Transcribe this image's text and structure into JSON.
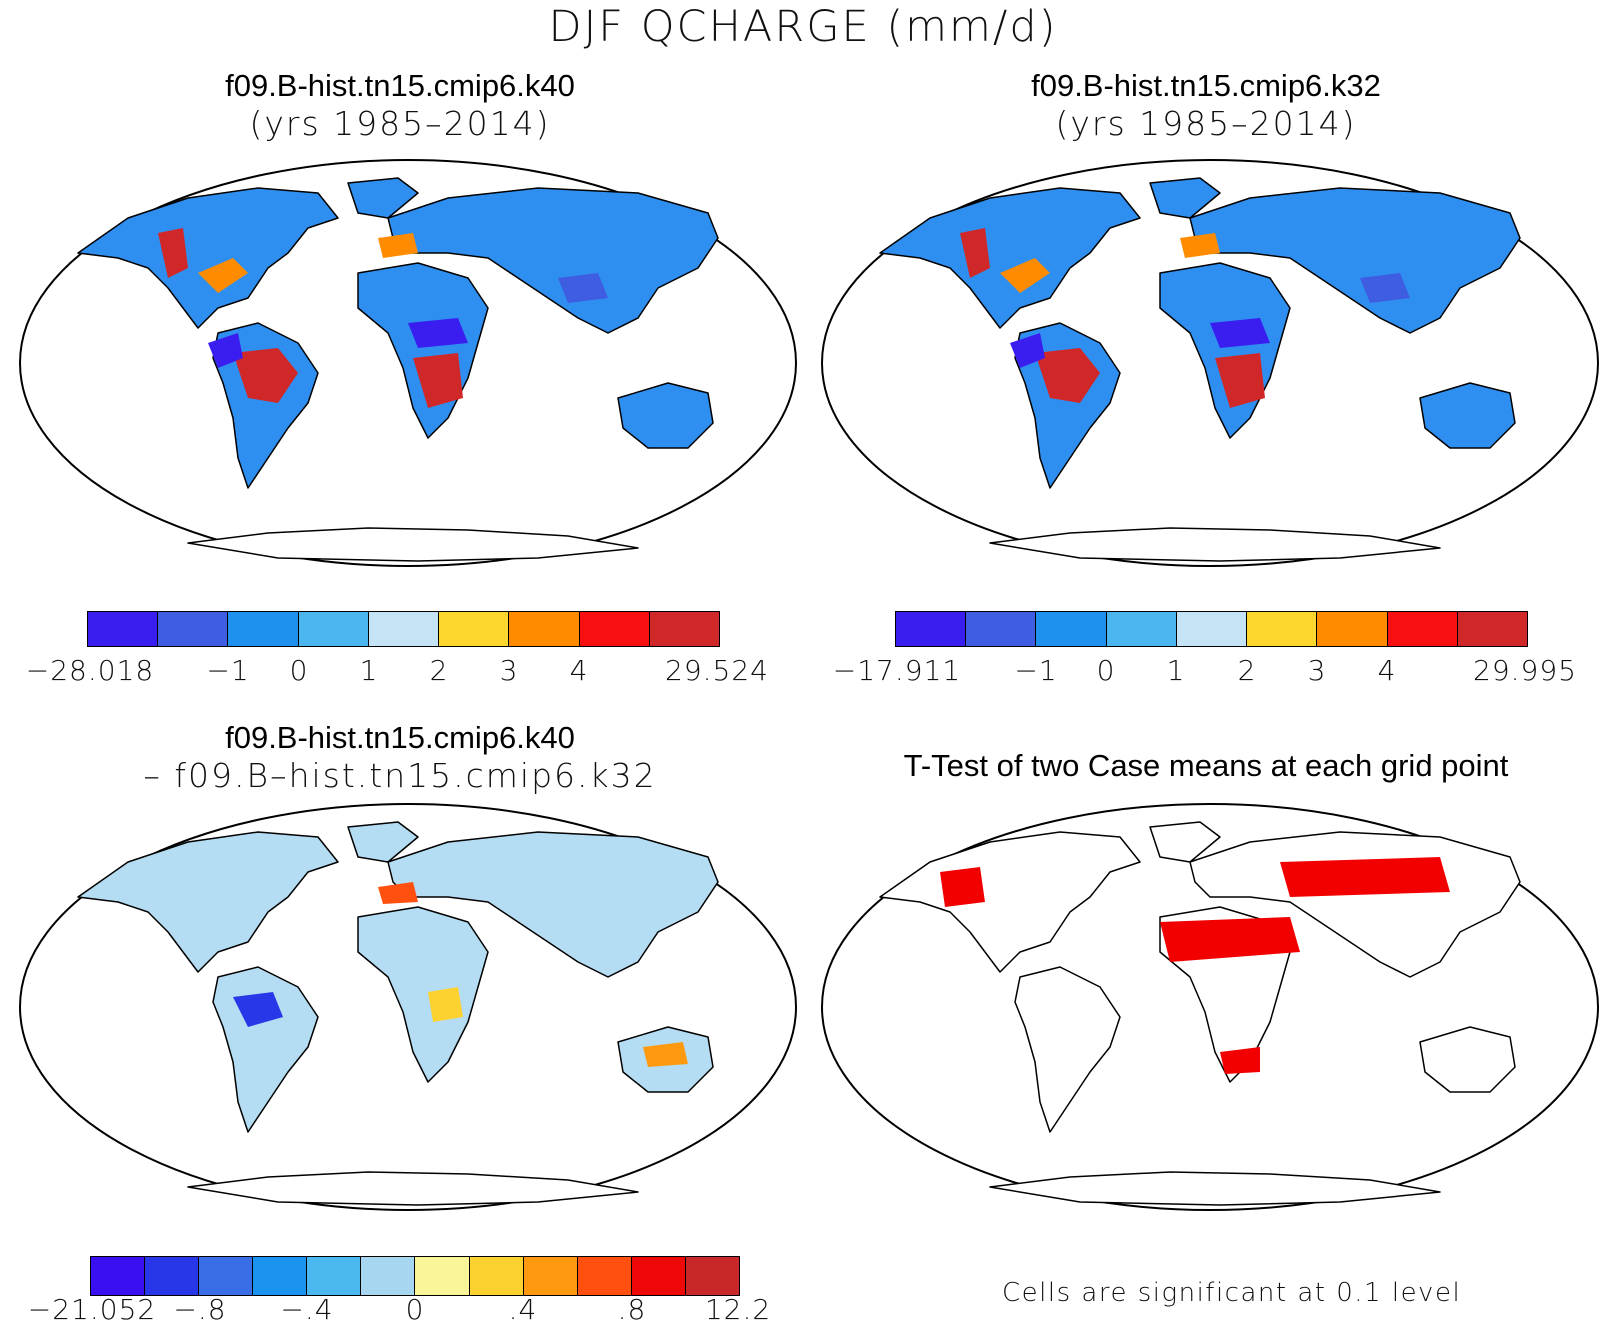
{
  "title": "DJF QCHARGE (mm/d)",
  "panels": {
    "top_left": {
      "title": "f09.B-hist.tn15.cmip6.k40",
      "subtitle": "(yrs 1985–2014)"
    },
    "top_right": {
      "title": "f09.B-hist.tn15.cmip6.k32",
      "subtitle": "(yrs 1985–2014)"
    },
    "bottom_left": {
      "title": "f09.B-hist.tn15.cmip6.k40",
      "subtitle": "– f09.B–hist.tn15.cmip6.k32"
    },
    "bottom_right": {
      "title": "T-Test of two Case means at each grid point",
      "note": "Cells are significant at 0.1 level"
    }
  },
  "colorbars": {
    "top_left": {
      "colors": [
        "#3a1ef0",
        "#3e5de0",
        "#1e90ee",
        "#4cb6f0",
        "#c4e4f6",
        "#fdd62e",
        "#ff8c00",
        "#f81010",
        "#d02828"
      ],
      "labels": [
        "−28.018",
        "−1",
        "0",
        "1",
        "2",
        "3",
        "4",
        "29.524"
      ]
    },
    "top_right": {
      "colors": [
        "#3a1ef0",
        "#3e5de0",
        "#1e90ee",
        "#4cb6f0",
        "#c4e4f6",
        "#fdd62e",
        "#ff8c00",
        "#f81010",
        "#d02828"
      ],
      "labels": [
        "−17.911",
        "−1",
        "0",
        "1",
        "2",
        "3",
        "4",
        "29.995"
      ]
    },
    "bottom": {
      "colors": [
        "#3a10f2",
        "#2838e8",
        "#3a6ee6",
        "#1a94ee",
        "#4cb8f0",
        "#a6d6f0",
        "#fbf59a",
        "#fdd230",
        "#ff9a10",
        "#ff5010",
        "#ee0808",
        "#c82828"
      ],
      "labels": [
        "−21.052",
        "−.8",
        "−.4",
        "0",
        ".4",
        ".8",
        "12.2"
      ]
    }
  },
  "map_colors": {
    "ocean": "#ffffff",
    "land_top": "#2f8ff0",
    "land_diff": "#b4dcf2",
    "sig": "#f20000"
  }
}
